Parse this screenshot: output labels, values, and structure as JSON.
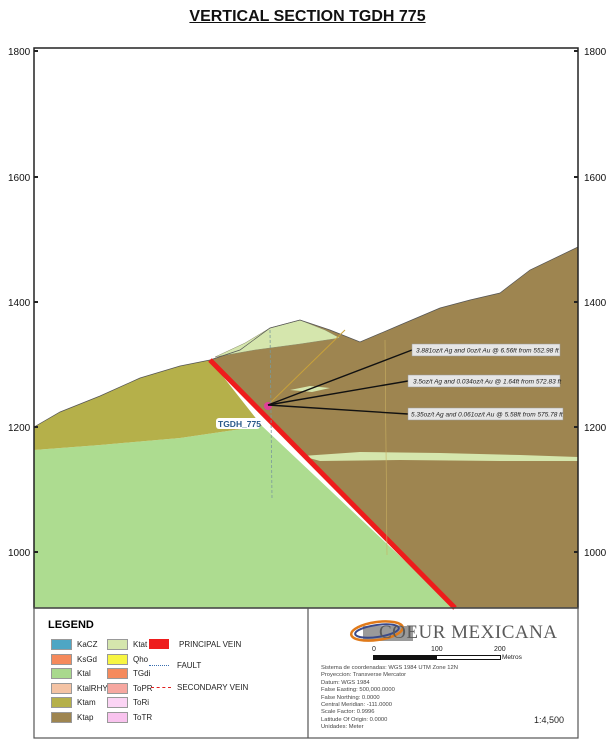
{
  "title": "VERTICAL SECTION TGDH  775",
  "elevation_ticks": [
    "1800",
    "1600",
    "1400",
    "1200",
    "1000"
  ],
  "drillhole_label": "TGDH_775",
  "intercepts": [
    "3.881oz/t Ag and 0oz/t Au @ 6.56ft from 552.98 ft",
    "3.5oz/t Ag and 0.034oz/t Au @ 1.64ft from 572.83 ft",
    "5.35oz/t Ag and 0.061oz/t Au @ 5.58ft from 575.78 ft"
  ],
  "legend": {
    "title": "LEGEND",
    "units_col1": [
      {
        "label": "KaCZ",
        "color": "#4ea6c4"
      },
      {
        "label": "KsGd",
        "color": "#f58a5c"
      },
      {
        "label": "Ktal",
        "color": "#a9d98d"
      },
      {
        "label": "KtalRHY",
        "color": "#f4c3a4"
      },
      {
        "label": "Ktam",
        "color": "#b5b04a"
      },
      {
        "label": "Ktap",
        "color": "#9e8550"
      }
    ],
    "units_col2": [
      {
        "label": "Ktat",
        "color": "#d5e6ad"
      },
      {
        "label": "Qho",
        "color": "#f7f542"
      },
      {
        "label": "TGdi",
        "color": "#f58a5c"
      },
      {
        "label": "ToPR",
        "color": "#f6a7a0"
      },
      {
        "label": "ToRi",
        "color": "#fbd4f4"
      },
      {
        "label": "ToTR",
        "color": "#f9c3ee"
      }
    ],
    "principal_vein": "PRINCIPAL VEIN",
    "fault": "FAULT",
    "secondary_vein": "SECONDARY VEIN"
  },
  "info": {
    "company": "COEUR MEXICANA",
    "scale_labels": [
      "0",
      "100",
      "200"
    ],
    "scale_unit": "Metros",
    "projection": [
      "Sistema de coordenadas: WGS 1984 UTM Zone 12N",
      "Proyeccion: Transverse Mercator",
      "Datum: WGS 1984",
      "False Easting: 500,000.0000",
      "False Northing: 0.0000",
      "Central Meridian: -111.0000",
      "Scale Factor: 0.9996",
      "Latitude Of Origin: 0.0000",
      "Unidades: Meter"
    ],
    "scale_ratio": "1:4,500"
  },
  "colors": {
    "vein": "#ee1c1c",
    "ktap": "#9e8550",
    "ktam": "#b5b04a",
    "ktal": "#addc90",
    "ktat": "#d5e6ad"
  }
}
